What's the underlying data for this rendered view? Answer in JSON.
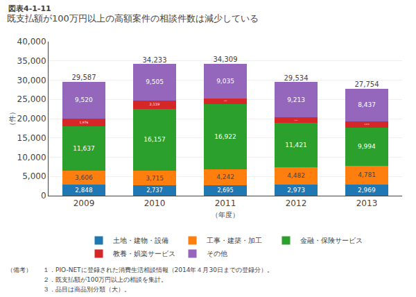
{
  "chart_data": {
    "type": "bar",
    "stacked": true,
    "title": "既支払額が100万円以上の高額案件の相談件数は減少している",
    "annotations": [
      "図表4-1-11",
      "（備考）",
      "１．PIO-NETに登録された消費生活相談情報（2014年４月30日までの登録分）。",
      "２．既支払額が100万円以上の相談を集計。",
      "３．品目は商品別分類（大）。"
    ],
    "ylabel": "（件）",
    "xlabel": "（年度）",
    "categories": [
      "2009",
      "2010",
      "2011",
      "2012",
      "2013"
    ],
    "series": [
      {
        "name": "土地・建物・設備",
        "values": [
          2848,
          2737,
          2695,
          2973,
          2969
        ],
        "value_labels": [
          "2,848",
          "2,737",
          "2,695",
          "2,973",
          "2,969"
        ]
      },
      {
        "name": "工事・建築・加工",
        "values": [
          3606,
          3715,
          4242,
          4482,
          4781
        ],
        "value_labels": [
          "3,606",
          "3,715",
          "4,242",
          "4,482",
          "4,781"
        ]
      },
      {
        "name": "金融・保険サービス",
        "values": [
          11637,
          16157,
          16922,
          11421,
          9994
        ],
        "value_labels": [
          "11,637",
          "16,157",
          "16,922",
          "11,421",
          "9,994"
        ]
      },
      {
        "name": "教養・娯楽サービス",
        "values": [
          1976,
          2119,
          1415,
          1445,
          1573
        ],
        "value_labels": [
          "1,976",
          "2,119",
          "1,415",
          "1,445",
          "1,573"
        ]
      },
      {
        "name": "その他",
        "values": [
          9520,
          9505,
          9035,
          9213,
          8437
        ],
        "value_labels": [
          "9,520",
          "9,505",
          "9,035",
          "9,213",
          "8,437"
        ]
      }
    ],
    "totals": [
      29587,
      34233,
      34309,
      29534,
      27754
    ],
    "total_labels": [
      "29,587",
      "34,233",
      "34,309",
      "29,534",
      "27,754"
    ],
    "ylim": [
      0,
      40000
    ],
    "yticks": [
      0,
      {
        "value": 5000,
        "label": "5,000"
      },
      {
        "value": 10000,
        "label": "10,000"
      },
      {
        "value": 15000,
        "label": "15,000"
      },
      {
        "value": 20000,
        "label": "20,000"
      },
      {
        "value": 25000,
        "label": "25,000"
      },
      {
        "value": 30000,
        "label": "30,000"
      },
      {
        "value": 35000,
        "label": "35,000"
      },
      {
        "value": 40000,
        "label": "40,000"
      }
    ],
    "grid": true,
    "legend": "bottom",
    "data_labels": true
  }
}
